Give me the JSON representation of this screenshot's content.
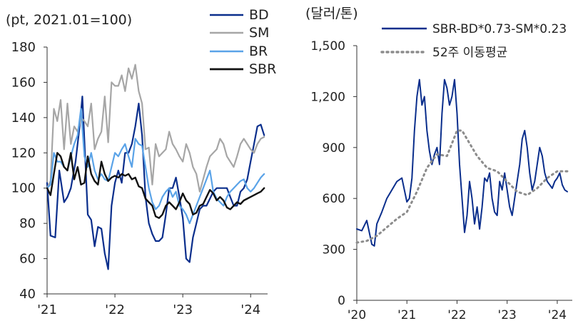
{
  "chart_data": [
    {
      "type": "line",
      "unit_label": "(pt, 2021.01=100)",
      "ylim": [
        40,
        180
      ],
      "yticks": [
        "40",
        "60",
        "80",
        "100",
        "120",
        "140",
        "160",
        "180"
      ],
      "xlim": [
        2021.0,
        2024.25
      ],
      "xticks": [
        {
          "x": 2021,
          "label": "'21"
        },
        {
          "x": 2022,
          "label": "'22"
        },
        {
          "x": 2023,
          "label": "'23"
        },
        {
          "x": 2024,
          "label": "'24"
        }
      ],
      "grid": false,
      "legend": "top-right",
      "series": [
        {
          "name": "BD",
          "color": "#0a2e8c",
          "width": 2.2,
          "x": [
            2021.0,
            2021.05,
            2021.12,
            2021.18,
            2021.25,
            2021.3,
            2021.35,
            2021.42,
            2021.48,
            2021.52,
            2021.55,
            2021.6,
            2021.65,
            2021.7,
            2021.75,
            2021.8,
            2021.85,
            2021.9,
            2021.95,
            2022.0,
            2022.05,
            2022.1,
            2022.15,
            2022.2,
            2022.25,
            2022.3,
            2022.35,
            2022.4,
            2022.45,
            2022.5,
            2022.55,
            2022.6,
            2022.65,
            2022.7,
            2022.75,
            2022.8,
            2022.85,
            2022.9,
            2022.95,
            2023.0,
            2023.05,
            2023.1,
            2023.15,
            2023.2,
            2023.25,
            2023.3,
            2023.35,
            2023.4,
            2023.45,
            2023.5,
            2023.55,
            2023.6,
            2023.65,
            2023.7,
            2023.75,
            2023.8,
            2023.85,
            2023.9,
            2023.95,
            2024.0,
            2024.05,
            2024.1,
            2024.15,
            2024.2
          ],
          "y": [
            103,
            73,
            72,
            110,
            92,
            95,
            100,
            115,
            135,
            152,
            127,
            85,
            82,
            67,
            78,
            77,
            63,
            54,
            90,
            103,
            110,
            103,
            120,
            120,
            125,
            135,
            148,
            130,
            95,
            80,
            74,
            70,
            70,
            72,
            85,
            100,
            100,
            106,
            95,
            83,
            60,
            58,
            72,
            80,
            88,
            90,
            90,
            94,
            98,
            100,
            100,
            100,
            100,
            95,
            90,
            90,
            98,
            100,
            105,
            115,
            125,
            135,
            136,
            130
          ]
        },
        {
          "name": "SM",
          "color": "#a6a6a6",
          "width": 2.2,
          "x": [
            2021.0,
            2021.05,
            2021.1,
            2021.15,
            2021.2,
            2021.25,
            2021.3,
            2021.35,
            2021.4,
            2021.45,
            2021.5,
            2021.55,
            2021.6,
            2021.65,
            2021.7,
            2021.75,
            2021.8,
            2021.85,
            2021.9,
            2021.95,
            2022.0,
            2022.05,
            2022.1,
            2022.15,
            2022.2,
            2022.25,
            2022.3,
            2022.35,
            2022.4,
            2022.45,
            2022.5,
            2022.55,
            2022.6,
            2022.65,
            2022.7,
            2022.75,
            2022.8,
            2022.85,
            2022.9,
            2022.95,
            2023.0,
            2023.05,
            2023.1,
            2023.15,
            2023.2,
            2023.25,
            2023.3,
            2023.35,
            2023.4,
            2023.45,
            2023.5,
            2023.55,
            2023.6,
            2023.65,
            2023.7,
            2023.75,
            2023.8,
            2023.85,
            2023.9,
            2023.95,
            2024.0,
            2024.05,
            2024.1,
            2024.15,
            2024.2
          ],
          "y": [
            100,
            104,
            145,
            138,
            150,
            122,
            148,
            125,
            135,
            132,
            140,
            138,
            135,
            148,
            122,
            128,
            132,
            152,
            126,
            160,
            158,
            158,
            164,
            155,
            168,
            162,
            170,
            155,
            148,
            122,
            123,
            102,
            125,
            118,
            120,
            122,
            132,
            125,
            122,
            118,
            115,
            125,
            120,
            112,
            108,
            98,
            105,
            112,
            118,
            120,
            122,
            128,
            125,
            118,
            115,
            112,
            118,
            125,
            128,
            125,
            122,
            120,
            125,
            128,
            129
          ]
        },
        {
          "name": "BR",
          "color": "#5aa3e8",
          "width": 2.2,
          "x": [
            2021.0,
            2021.05,
            2021.1,
            2021.15,
            2021.2,
            2021.25,
            2021.3,
            2021.35,
            2021.4,
            2021.45,
            2021.5,
            2021.55,
            2021.6,
            2021.65,
            2021.7,
            2021.75,
            2021.8,
            2021.85,
            2021.9,
            2021.95,
            2022.0,
            2022.05,
            2022.1,
            2022.15,
            2022.2,
            2022.25,
            2022.3,
            2022.35,
            2022.4,
            2022.45,
            2022.5,
            2022.55,
            2022.6,
            2022.65,
            2022.7,
            2022.75,
            2022.8,
            2022.85,
            2022.9,
            2022.95,
            2023.0,
            2023.05,
            2023.1,
            2023.15,
            2023.2,
            2023.25,
            2023.3,
            2023.35,
            2023.4,
            2023.45,
            2023.5,
            2023.55,
            2023.6,
            2023.65,
            2023.7,
            2023.75,
            2023.8,
            2023.85,
            2023.9,
            2023.95,
            2024.0,
            2024.05,
            2024.1,
            2024.15,
            2024.2
          ],
          "y": [
            100,
            102,
            120,
            115,
            115,
            112,
            110,
            118,
            125,
            130,
            145,
            118,
            112,
            120,
            110,
            105,
            108,
            105,
            104,
            112,
            120,
            118,
            122,
            125,
            118,
            112,
            128,
            125,
            124,
            112,
            100,
            92,
            88,
            90,
            95,
            98,
            100,
            95,
            98,
            90,
            88,
            85,
            80,
            85,
            90,
            95,
            100,
            105,
            110,
            98,
            94,
            92,
            90,
            95,
            98,
            100,
            102,
            104,
            105,
            100,
            98,
            100,
            103,
            106,
            108
          ]
        },
        {
          "name": "SBR",
          "color": "#111111",
          "width": 2.4,
          "x": [
            2021.0,
            2021.05,
            2021.1,
            2021.15,
            2021.2,
            2021.25,
            2021.3,
            2021.35,
            2021.4,
            2021.45,
            2021.5,
            2021.55,
            2021.6,
            2021.65,
            2021.7,
            2021.75,
            2021.8,
            2021.85,
            2021.9,
            2021.95,
            2022.0,
            2022.05,
            2022.1,
            2022.15,
            2022.2,
            2022.25,
            2022.3,
            2022.35,
            2022.4,
            2022.45,
            2022.5,
            2022.55,
            2022.6,
            2022.65,
            2022.7,
            2022.75,
            2022.8,
            2022.85,
            2022.9,
            2022.95,
            2023.0,
            2023.05,
            2023.1,
            2023.15,
            2023.2,
            2023.25,
            2023.3,
            2023.35,
            2023.4,
            2023.45,
            2023.5,
            2023.55,
            2023.6,
            2023.65,
            2023.7,
            2023.75,
            2023.8,
            2023.85,
            2023.9,
            2023.95,
            2024.0,
            2024.05,
            2024.1,
            2024.15,
            2024.2
          ],
          "y": [
            100,
            96,
            108,
            120,
            118,
            112,
            110,
            120,
            105,
            112,
            102,
            103,
            118,
            108,
            104,
            102,
            115,
            108,
            104,
            106,
            107,
            106,
            108,
            107,
            108,
            105,
            106,
            101,
            100,
            94,
            92,
            90,
            84,
            83,
            85,
            90,
            92,
            90,
            88,
            92,
            97,
            93,
            91,
            85,
            86,
            90,
            91,
            95,
            99,
            97,
            93,
            95,
            93,
            89,
            88,
            90,
            92,
            91,
            93,
            94,
            95,
            96,
            97,
            98,
            100
          ]
        }
      ]
    },
    {
      "type": "line",
      "unit_label": "(달러/톤)",
      "ylim": [
        0,
        1500
      ],
      "yticks": [
        "0",
        "300",
        "600",
        "900",
        "1,200",
        "1,500"
      ],
      "xlim": [
        2020.0,
        2024.3
      ],
      "xticks": [
        {
          "x": 2020,
          "label": "'20"
        },
        {
          "x": 2021,
          "label": "'21"
        },
        {
          "x": 2022,
          "label": "'22"
        },
        {
          "x": 2023,
          "label": "'23"
        },
        {
          "x": 2024,
          "label": "'24"
        }
      ],
      "grid": false,
      "legend": "top-right",
      "series": [
        {
          "name": "SBR-BD*0.73-SM*0.23",
          "color": "#0a2e8c",
          "width": 2.0,
          "dash": "none",
          "x": [
            2020.0,
            2020.1,
            2020.2,
            2020.3,
            2020.35,
            2020.4,
            2020.5,
            2020.6,
            2020.7,
            2020.8,
            2020.9,
            2021.0,
            2021.05,
            2021.1,
            2021.15,
            2021.2,
            2021.25,
            2021.3,
            2021.35,
            2021.4,
            2021.45,
            2021.5,
            2021.55,
            2021.6,
            2021.65,
            2021.7,
            2021.75,
            2021.8,
            2021.85,
            2021.9,
            2021.95,
            2022.0,
            2022.05,
            2022.1,
            2022.15,
            2022.2,
            2022.25,
            2022.3,
            2022.35,
            2022.4,
            2022.45,
            2022.5,
            2022.55,
            2022.6,
            2022.65,
            2022.7,
            2022.75,
            2022.8,
            2022.85,
            2022.9,
            2022.95,
            2023.0,
            2023.05,
            2023.1,
            2023.15,
            2023.2,
            2023.25,
            2023.3,
            2023.35,
            2023.4,
            2023.45,
            2023.5,
            2023.55,
            2023.6,
            2023.65,
            2023.7,
            2023.75,
            2023.8,
            2023.85,
            2023.9,
            2023.95,
            2024.0,
            2024.05,
            2024.1,
            2024.15,
            2024.2
          ],
          "y": [
            420,
            410,
            470,
            330,
            320,
            450,
            520,
            600,
            650,
            700,
            720,
            580,
            600,
            720,
            1000,
            1200,
            1300,
            1150,
            1200,
            1000,
            880,
            800,
            860,
            900,
            800,
            1100,
            1300,
            1250,
            1150,
            1200,
            1300,
            1100,
            800,
            600,
            400,
            500,
            700,
            600,
            450,
            550,
            420,
            550,
            720,
            700,
            750,
            600,
            520,
            500,
            700,
            650,
            750,
            650,
            550,
            500,
            600,
            700,
            800,
            950,
            1000,
            900,
            750,
            650,
            700,
            800,
            900,
            850,
            750,
            700,
            680,
            660,
            700,
            720,
            750,
            680,
            650,
            640
          ]
        },
        {
          "name": "52주 이동평균",
          "color": "#8c8c8c",
          "width": 3.0,
          "dash": "2,5",
          "x": [
            2020.0,
            2020.2,
            2020.4,
            2020.6,
            2020.8,
            2021.0,
            2021.2,
            2021.4,
            2021.6,
            2021.8,
            2022.0,
            2022.1,
            2022.2,
            2022.4,
            2022.6,
            2022.8,
            2023.0,
            2023.2,
            2023.4,
            2023.6,
            2023.8,
            2024.0,
            2024.2
          ],
          "y": [
            340,
            350,
            380,
            430,
            480,
            520,
            640,
            780,
            860,
            850,
            1000,
            1000,
            950,
            850,
            780,
            760,
            700,
            640,
            620,
            660,
            720,
            760,
            760
          ]
        }
      ]
    }
  ]
}
